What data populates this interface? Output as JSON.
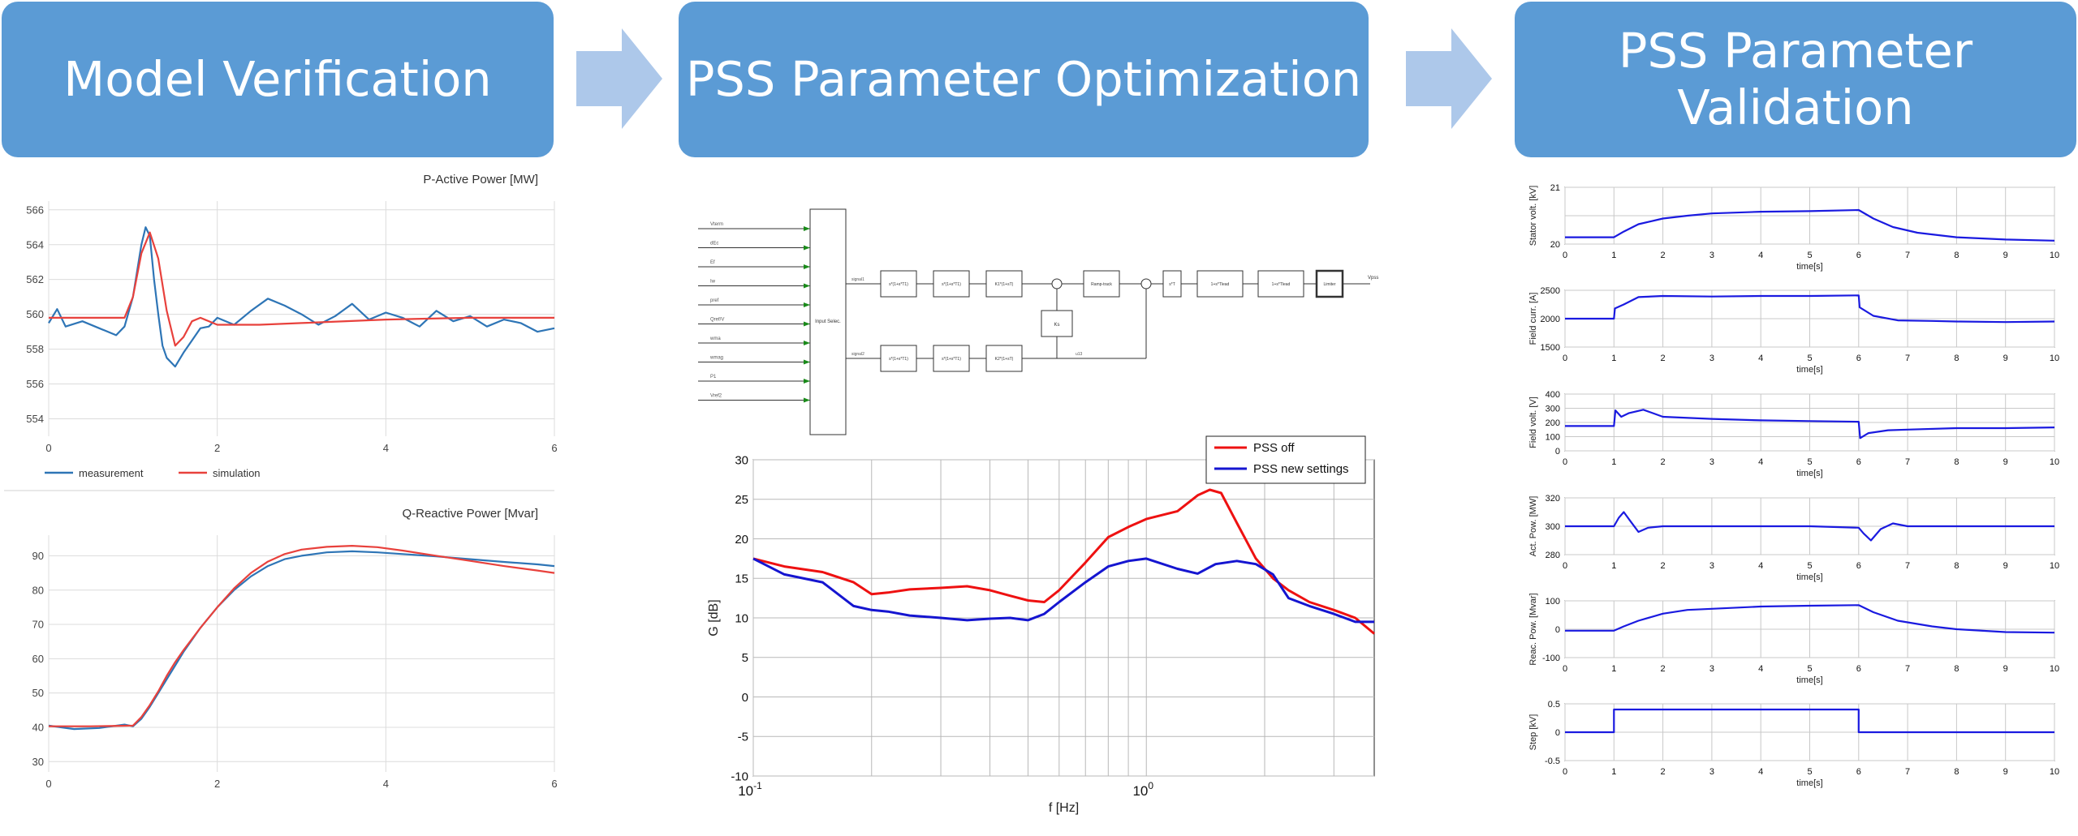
{
  "banners": [
    {
      "title": "Model Verification"
    },
    {
      "title": "PSS Parameter Optimization"
    },
    {
      "title": "PSS Parameter\nValidation"
    }
  ],
  "colors": {
    "banner": "#5b9bd5",
    "arrow": "#adc8ea",
    "measurement": "#2e75b6",
    "simulation": "#e8413c",
    "pss_off": "#ee1111",
    "pss_new": "#1515d0",
    "validation_line": "#1a1ae0"
  },
  "block_diagram": {
    "inputs": [
      "Vterm",
      "dEc",
      "Ef",
      "Iw",
      "pref",
      "Qref/V",
      "wma",
      "wmag",
      "P1",
      "Vref2"
    ],
    "input_block_label": "Input Selec.",
    "top_chain": [
      "s*(1+s*T1)",
      "s*(1+s*T1)",
      "K1*(1+sT)",
      "Ramp-track",
      "s*T",
      "1+s*Tlead",
      "1+s*Tlead",
      "Limiter"
    ],
    "bottom_chain": [
      "s*(1+s*T1)",
      "s*(1+s*T1)",
      "K2*(1+sT)"
    ],
    "middle_block": "Ks",
    "signal_labels": [
      "signal1",
      "signal2",
      "u13"
    ],
    "output_label": "Vpss"
  },
  "chart_data": [
    {
      "type": "line",
      "title": "P-Active Power [MW]",
      "xlim": [
        0,
        6
      ],
      "ylim": [
        553,
        566.5
      ],
      "xticks": [
        0,
        2,
        4,
        6
      ],
      "yticks": [
        554,
        556,
        558,
        560,
        562,
        564,
        566
      ],
      "grid": true,
      "legend": "below",
      "series": [
        {
          "name": "measurement",
          "x": [
            0,
            0.1,
            0.2,
            0.4,
            0.6,
            0.8,
            0.9,
            1.0,
            1.05,
            1.1,
            1.15,
            1.2,
            1.25,
            1.3,
            1.35,
            1.4,
            1.5,
            1.6,
            1.7,
            1.8,
            1.9,
            2.0,
            2.2,
            2.4,
            2.6,
            2.8,
            3.0,
            3.2,
            3.4,
            3.6,
            3.8,
            4.0,
            4.2,
            4.4,
            4.6,
            4.8,
            5.0,
            5.2,
            5.4,
            5.6,
            5.8,
            6.0
          ],
          "values": [
            559.5,
            560.3,
            559.3,
            559.6,
            559.2,
            558.8,
            559.3,
            561,
            562.5,
            564,
            565,
            564.5,
            562,
            560,
            558.2,
            557.5,
            557,
            557.8,
            558.5,
            559.2,
            559.3,
            559.8,
            559.4,
            560.2,
            560.9,
            560.5,
            560,
            559.4,
            559.9,
            560.6,
            559.7,
            560.1,
            559.8,
            559.3,
            560.2,
            559.6,
            559.9,
            559.3,
            559.7,
            559.5,
            559,
            559.2
          ]
        },
        {
          "name": "simulation",
          "x": [
            0,
            0.9,
            1.0,
            1.1,
            1.2,
            1.3,
            1.4,
            1.5,
            1.6,
            1.7,
            1.8,
            2.0,
            2.5,
            3.0,
            4.0,
            5.0,
            6.0
          ],
          "values": [
            559.8,
            559.8,
            561,
            563.5,
            564.7,
            563.2,
            560.2,
            558.2,
            558.7,
            559.6,
            559.8,
            559.4,
            559.4,
            559.5,
            559.7,
            559.8,
            559.8
          ]
        }
      ]
    },
    {
      "type": "line",
      "title": "Q-Reactive Power [Mvar]",
      "xlim": [
        0,
        6
      ],
      "ylim": [
        27,
        96
      ],
      "xticks": [
        0,
        2,
        4,
        6
      ],
      "yticks": [
        30,
        40,
        50,
        60,
        70,
        80,
        90
      ],
      "grid": true,
      "series": [
        {
          "name": "measurement",
          "x": [
            0,
            0.3,
            0.6,
            0.9,
            1.0,
            1.1,
            1.2,
            1.3,
            1.4,
            1.5,
            1.6,
            1.8,
            2.0,
            2.2,
            2.4,
            2.6,
            2.8,
            3.0,
            3.3,
            3.6,
            3.9,
            4.2,
            4.6,
            5.0,
            5.4,
            5.8,
            6.0
          ],
          "values": [
            40.5,
            39.5,
            39.8,
            40.8,
            40.3,
            42.5,
            46,
            50,
            54,
            58,
            62,
            69,
            75,
            80,
            84,
            87,
            89,
            90,
            91,
            91.3,
            91,
            90.5,
            89.8,
            89,
            88.2,
            87.5,
            87
          ]
        },
        {
          "name": "simulation",
          "x": [
            0,
            0.5,
            1.0,
            1.1,
            1.2,
            1.3,
            1.4,
            1.5,
            1.6,
            1.8,
            2.0,
            2.2,
            2.4,
            2.6,
            2.8,
            3.0,
            3.3,
            3.6,
            3.9,
            4.2,
            4.6,
            5.0,
            5.4,
            5.8,
            6.0
          ],
          "values": [
            40.3,
            40.3,
            40.5,
            43,
            46.5,
            50.5,
            55,
            59,
            62.5,
            69,
            75,
            80.5,
            85,
            88.3,
            90.5,
            91.8,
            92.6,
            92.9,
            92.5,
            91.5,
            90,
            88.5,
            87,
            85.7,
            85
          ]
        }
      ]
    },
    {
      "type": "line",
      "ylabel": "G [dB]",
      "xlabel": "f [Hz]",
      "xscale": "log",
      "xlim": [
        0.1,
        3.8
      ],
      "ylim": [
        -10,
        30
      ],
      "yticks": [
        -10,
        -5,
        0,
        5,
        10,
        15,
        20,
        25,
        30
      ],
      "grid": true,
      "legend": "top-right",
      "series": [
        {
          "name": "PSS off",
          "x": [
            0.1,
            0.12,
            0.15,
            0.18,
            0.2,
            0.22,
            0.25,
            0.3,
            0.35,
            0.4,
            0.45,
            0.5,
            0.55,
            0.6,
            0.7,
            0.8,
            0.9,
            1.0,
            1.2,
            1.35,
            1.45,
            1.55,
            1.7,
            1.9,
            2.1,
            2.3,
            2.6,
            3.0,
            3.4,
            3.8
          ],
          "values": [
            17.5,
            16.5,
            15.8,
            14.5,
            13,
            13.2,
            13.6,
            13.8,
            14,
            13.5,
            12.8,
            12.2,
            12,
            13.5,
            17,
            20.2,
            21.5,
            22.5,
            23.5,
            25.5,
            26.2,
            25.8,
            22,
            17.5,
            15,
            13.5,
            12,
            11,
            10,
            8
          ]
        },
        {
          "name": "PSS new settings",
          "x": [
            0.1,
            0.12,
            0.15,
            0.18,
            0.2,
            0.22,
            0.25,
            0.3,
            0.35,
            0.4,
            0.45,
            0.5,
            0.55,
            0.6,
            0.7,
            0.8,
            0.9,
            1.0,
            1.2,
            1.35,
            1.5,
            1.7,
            1.9,
            2.1,
            2.3,
            2.6,
            3.0,
            3.4,
            3.8
          ],
          "values": [
            17.5,
            15.5,
            14.5,
            11.5,
            11,
            10.8,
            10.3,
            10,
            9.7,
            9.9,
            10,
            9.7,
            10.5,
            12,
            14.5,
            16.5,
            17.2,
            17.5,
            16.2,
            15.6,
            16.8,
            17.2,
            16.8,
            15.5,
            12.5,
            11.5,
            10.5,
            9.5,
            9.5
          ]
        }
      ]
    },
    {
      "type": "line",
      "ylabel": "Stator volt. [kV]",
      "xlabel": "time[s]",
      "xlim": [
        0,
        10
      ],
      "ylim": [
        20,
        21
      ],
      "yticks": [
        20,
        20.5,
        21
      ],
      "ytick_labels": [
        "20",
        "",
        "21"
      ],
      "xticks": [
        0,
        1,
        2,
        3,
        4,
        5,
        6,
        7,
        8,
        9,
        10
      ],
      "grid": true,
      "series": [
        {
          "x": [
            0,
            1,
            1.2,
            1.5,
            2,
            2.5,
            3,
            4,
            5,
            6,
            6.3,
            6.7,
            7.2,
            8,
            9,
            10
          ],
          "values": [
            20.12,
            20.12,
            20.22,
            20.35,
            20.45,
            20.5,
            20.54,
            20.57,
            20.58,
            20.6,
            20.45,
            20.3,
            20.2,
            20.12,
            20.08,
            20.06
          ]
        }
      ]
    },
    {
      "type": "line",
      "ylabel": "Field curr. [A]",
      "xlabel": "time[s]",
      "xlim": [
        0,
        10
      ],
      "ylim": [
        1500,
        2500
      ],
      "yticks": [
        1500,
        2000,
        2500
      ],
      "xticks": [
        0,
        1,
        2,
        3,
        4,
        5,
        6,
        7,
        8,
        9,
        10
      ],
      "grid": true,
      "series": [
        {
          "x": [
            0,
            1,
            1.02,
            1.2,
            1.5,
            2,
            3,
            4,
            5,
            6,
            6.02,
            6.3,
            6.8,
            7.5,
            8,
            9,
            10
          ],
          "values": [
            2000,
            2000,
            2180,
            2250,
            2380,
            2400,
            2390,
            2400,
            2400,
            2410,
            2200,
            2050,
            1970,
            1960,
            1950,
            1940,
            1950
          ]
        }
      ]
    },
    {
      "type": "line",
      "ylabel": "Field volt. [V]",
      "xlabel": "time[s]",
      "xlim": [
        0,
        10
      ],
      "ylim": [
        0,
        400
      ],
      "yticks": [
        0,
        100,
        200,
        300,
        400
      ],
      "xticks": [
        0,
        1,
        2,
        3,
        4,
        5,
        6,
        7,
        8,
        9,
        10
      ],
      "grid": true,
      "series": [
        {
          "x": [
            0,
            1,
            1.03,
            1.15,
            1.3,
            1.6,
            2,
            3,
            4,
            5,
            6,
            6.03,
            6.2,
            6.6,
            7,
            8,
            9,
            10
          ],
          "values": [
            175,
            175,
            285,
            240,
            265,
            290,
            240,
            225,
            215,
            210,
            205,
            90,
            125,
            145,
            150,
            160,
            160,
            165
          ]
        }
      ]
    },
    {
      "type": "line",
      "ylabel": "Act. Pow. [MW]",
      "xlabel": "time[s]",
      "xlim": [
        0,
        10
      ],
      "ylim": [
        280,
        320
      ],
      "yticks": [
        280,
        300,
        320
      ],
      "xticks": [
        0,
        1,
        2,
        3,
        4,
        5,
        6,
        7,
        8,
        9,
        10
      ],
      "grid": true,
      "series": [
        {
          "x": [
            0,
            1,
            1.1,
            1.2,
            1.35,
            1.5,
            1.7,
            2,
            3,
            4,
            5,
            6,
            6.1,
            6.25,
            6.45,
            6.7,
            7,
            8,
            9,
            10
          ],
          "values": [
            300,
            300,
            306,
            310,
            303,
            296,
            299,
            300,
            300,
            300,
            300,
            299,
            295,
            290,
            298,
            302,
            300,
            300,
            300,
            300
          ]
        }
      ]
    },
    {
      "type": "line",
      "ylabel": "Reac. Pow. [Mvar]",
      "xlabel": "time[s]",
      "xlim": [
        0,
        10
      ],
      "ylim": [
        -100,
        100
      ],
      "yticks": [
        -100,
        0,
        100
      ],
      "xticks": [
        0,
        1,
        2,
        3,
        4,
        5,
        6,
        7,
        8,
        9,
        10
      ],
      "grid": true,
      "series": [
        {
          "x": [
            0,
            1,
            1.2,
            1.5,
            2,
            2.5,
            3,
            4,
            5,
            6,
            6.3,
            6.8,
            7.5,
            8,
            9,
            10
          ],
          "values": [
            -5,
            -5,
            10,
            30,
            55,
            68,
            72,
            80,
            83,
            85,
            60,
            30,
            10,
            0,
            -10,
            -12
          ]
        }
      ]
    },
    {
      "type": "line",
      "ylabel": "Step [kV]",
      "xlabel": "time[s]",
      "xlim": [
        0,
        10
      ],
      "ylim": [
        -0.5,
        0.5
      ],
      "yticks": [
        -0.5,
        0,
        0.5
      ],
      "xticks": [
        0,
        1,
        2,
        3,
        4,
        5,
        6,
        7,
        8,
        9,
        10
      ],
      "grid": true,
      "series": [
        {
          "x": [
            0,
            1,
            1,
            6,
            6,
            10
          ],
          "values": [
            0,
            0,
            0.4,
            0.4,
            0,
            0
          ]
        }
      ]
    }
  ]
}
